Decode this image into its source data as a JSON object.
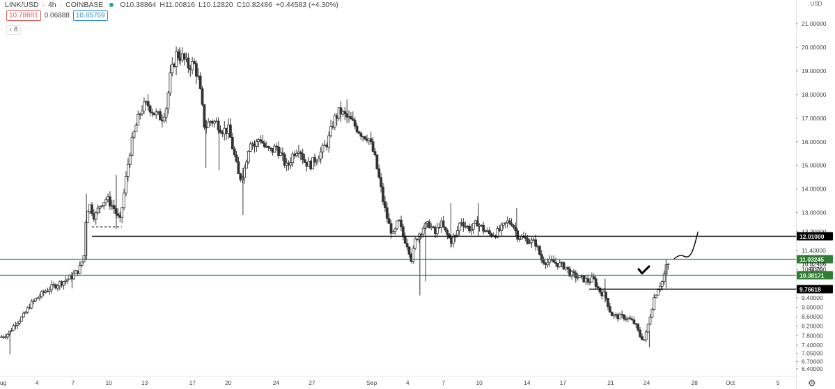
{
  "header": {
    "symbol": "LINK/USD",
    "interval": "4h",
    "exchange": "COINBASE",
    "sep": "·",
    "ohlc": {
      "open": "O10.38864",
      "high": "H11.00816",
      "low": "L10.12820",
      "close": "C10.82486",
      "change": "+0.44583 (+4.30%)"
    }
  },
  "quote": {
    "bid": "10.78881",
    "spread": "0.06888",
    "ask": "10.85769"
  },
  "indicator_toggle": {
    "chevron": "‹",
    "count": "8"
  },
  "settings_icon": "gear-icon",
  "colors": {
    "candle": "#333333",
    "support_line": "#000000",
    "green_line": "#2e7d32",
    "green_label_bg": "#2e7d32",
    "black_label_bg": "#000000",
    "grid": "#ffffff"
  },
  "chart_data": {
    "type": "candlestick",
    "currency_label": "USD",
    "price_axis_ticks": [
      6.4,
      6.7,
      7.05,
      7.4,
      7.8,
      8.2,
      8.6,
      9.0,
      9.4,
      9.8,
      10.6,
      11.4,
      12.2,
      13.0,
      14.0,
      15.0,
      16.0,
      17.0,
      18.0,
      19.0,
      20.0,
      21.0
    ],
    "price_axis_tick_labels": [
      "6.40000",
      "6.70000",
      "7.05000",
      "7.40000",
      "7.80000",
      "8.20000",
      "8.60000",
      "9.00000",
      "9.40000",
      "9.80000",
      "10.60000",
      "11.40000",
      "12.20000",
      "13.00000",
      "14.00000",
      "15.00000",
      "16.00000",
      "17.00000",
      "18.00000",
      "19.00000",
      "20.00000",
      "21.00000"
    ],
    "ylim": [
      6.1,
      22.0
    ],
    "date_axis_labels": [
      {
        "label": "Aug",
        "day": 1
      },
      {
        "label": "4",
        "day": 4
      },
      {
        "label": "7",
        "day": 7
      },
      {
        "label": "10",
        "day": 10
      },
      {
        "label": "13",
        "day": 13
      },
      {
        "label": "17",
        "day": 17
      },
      {
        "label": "20",
        "day": 20
      },
      {
        "label": "24",
        "day": 24
      },
      {
        "label": "27",
        "day": 27
      },
      {
        "label": "Sep",
        "day": 32
      },
      {
        "label": "4",
        "day": 35
      },
      {
        "label": "7",
        "day": 38
      },
      {
        "label": "10",
        "day": 41
      },
      {
        "label": "14",
        "day": 45
      },
      {
        "label": "17",
        "day": 48
      },
      {
        "label": "21",
        "day": 52
      },
      {
        "label": "24",
        "day": 55
      },
      {
        "label": "28",
        "day": 59
      },
      {
        "label": "Oct",
        "day": 62
      },
      {
        "label": "5",
        "day": 66
      }
    ],
    "xlim_days": [
      0.9,
      67.5
    ],
    "path_points": [
      [
        1.0,
        7.75
      ],
      [
        1.6,
        7.9
      ],
      [
        2.2,
        8.35
      ],
      [
        2.8,
        8.6
      ],
      [
        3.4,
        9.1
      ],
      [
        4.0,
        9.4
      ],
      [
        4.7,
        9.7
      ],
      [
        5.4,
        9.9
      ],
      [
        6.2,
        10.1
      ],
      [
        6.9,
        10.3
      ],
      [
        7.5,
        10.6
      ],
      [
        7.9,
        11.2
      ],
      [
        8.1,
        13.1
      ],
      [
        8.4,
        13.3
      ],
      [
        8.8,
        12.8
      ],
      [
        9.3,
        13.4
      ],
      [
        9.8,
        13.6
      ],
      [
        10.4,
        13.2
      ],
      [
        10.9,
        12.6
      ],
      [
        11.3,
        14.0
      ],
      [
        11.7,
        15.5
      ],
      [
        12.2,
        16.6
      ],
      [
        12.7,
        17.4
      ],
      [
        13.2,
        17.6
      ],
      [
        13.8,
        17.2
      ],
      [
        14.4,
        17.0
      ],
      [
        14.8,
        17.5
      ],
      [
        15.1,
        18.7
      ],
      [
        15.6,
        19.7
      ],
      [
        16.1,
        19.6
      ],
      [
        16.6,
        19.2
      ],
      [
        17.1,
        19.3
      ],
      [
        17.5,
        18.6
      ],
      [
        18.0,
        16.6
      ],
      [
        18.5,
        16.9
      ],
      [
        19.0,
        16.8
      ],
      [
        19.5,
        16.5
      ],
      [
        20.0,
        16.5
      ],
      [
        20.4,
        15.6
      ],
      [
        20.9,
        14.4
      ],
      [
        21.3,
        14.8
      ],
      [
        21.8,
        16.1
      ],
      [
        22.2,
        15.8
      ],
      [
        22.6,
        16.2
      ],
      [
        23.1,
        15.7
      ],
      [
        23.6,
        15.6
      ],
      [
        24.0,
        15.8
      ],
      [
        24.5,
        15.3
      ],
      [
        24.9,
        14.9
      ],
      [
        25.4,
        15.5
      ],
      [
        25.9,
        15.8
      ],
      [
        26.3,
        15.2
      ],
      [
        26.8,
        15.0
      ],
      [
        27.3,
        15.3
      ],
      [
        27.8,
        15.6
      ],
      [
        28.3,
        16.0
      ],
      [
        28.8,
        16.9
      ],
      [
        29.3,
        17.3
      ],
      [
        29.7,
        17.1
      ],
      [
        30.2,
        16.9
      ],
      [
        30.7,
        16.6
      ],
      [
        31.2,
        16.3
      ],
      [
        31.7,
        16.2
      ],
      [
        32.2,
        15.4
      ],
      [
        32.6,
        14.4
      ],
      [
        33.0,
        13.3
      ],
      [
        33.4,
        12.5
      ],
      [
        33.8,
        12.0
      ],
      [
        34.2,
        12.7
      ],
      [
        34.6,
        12.0
      ],
      [
        35.0,
        11.6
      ],
      [
        35.3,
        11.0
      ],
      [
        35.6,
        11.8
      ],
      [
        35.9,
        12.1
      ],
      [
        36.3,
        12.4
      ],
      [
        36.8,
        12.5
      ],
      [
        37.3,
        12.1
      ],
      [
        37.7,
        12.6
      ],
      [
        38.1,
        12.2
      ],
      [
        38.6,
        11.8
      ],
      [
        39.0,
        12.0
      ],
      [
        39.4,
        12.7
      ],
      [
        39.9,
        12.4
      ],
      [
        40.3,
        12.3
      ],
      [
        40.8,
        12.6
      ],
      [
        41.3,
        12.3
      ],
      [
        41.8,
        12.1
      ],
      [
        42.3,
        12.1
      ],
      [
        42.8,
        12.3
      ],
      [
        43.3,
        12.6
      ],
      [
        43.7,
        12.6
      ],
      [
        44.2,
        12.0
      ],
      [
        44.7,
        11.9
      ],
      [
        45.2,
        11.8
      ],
      [
        45.7,
        11.7
      ],
      [
        46.2,
        11.0
      ],
      [
        46.7,
        10.9
      ],
      [
        47.2,
        10.9
      ],
      [
        47.7,
        10.8
      ],
      [
        48.2,
        10.7
      ],
      [
        48.6,
        10.4
      ],
      [
        49.1,
        10.3
      ],
      [
        49.6,
        10.2
      ],
      [
        50.1,
        10.1
      ],
      [
        50.5,
        10.2
      ],
      [
        51.0,
        9.7
      ],
      [
        51.5,
        9.5
      ],
      [
        52.0,
        8.7
      ],
      [
        52.5,
        8.6
      ],
      [
        53.0,
        8.6
      ],
      [
        53.5,
        8.5
      ],
      [
        54.0,
        8.3
      ],
      [
        54.4,
        7.8
      ],
      [
        54.8,
        7.6
      ],
      [
        55.2,
        8.5
      ],
      [
        55.6,
        9.4
      ],
      [
        56.0,
        9.9
      ],
      [
        56.3,
        10.1
      ],
      [
        56.6,
        10.7
      ],
      [
        56.85,
        10.82
      ]
    ],
    "wicks": [
      {
        "day": 1.7,
        "low": 7.0,
        "high": 8.0
      },
      {
        "day": 6.9,
        "low": 9.8,
        "high": 10.5
      },
      {
        "day": 8.1,
        "low": 11.0,
        "high": 13.8
      },
      {
        "day": 10.6,
        "low": 12.3,
        "high": 14.6
      },
      {
        "day": 15.9,
        "low": 19.3,
        "high": 20.0
      },
      {
        "day": 18.1,
        "low": 14.9,
        "high": 16.9
      },
      {
        "day": 19.2,
        "low": 14.8,
        "high": 16.6
      },
      {
        "day": 21.2,
        "low": 12.9,
        "high": 14.9
      },
      {
        "day": 29.9,
        "low": 17.0,
        "high": 17.8
      },
      {
        "day": 36.0,
        "low": 9.5,
        "high": 12.0
      },
      {
        "day": 36.5,
        "low": 10.1,
        "high": 12.6
      },
      {
        "day": 38.6,
        "low": 11.5,
        "high": 13.4
      },
      {
        "day": 40.9,
        "low": 12.0,
        "high": 13.4
      },
      {
        "day": 44.1,
        "low": 12.1,
        "high": 13.2
      },
      {
        "day": 51.5,
        "low": 9.2,
        "high": 10.2
      },
      {
        "day": 55.2,
        "low": 7.3,
        "high": 8.0
      },
      {
        "day": 56.6,
        "low": 9.8,
        "high": 11.0
      }
    ],
    "horizontal_levels": [
      {
        "name": "resistance-12",
        "price": 12.01,
        "label": "12.01000",
        "style": "black-line",
        "from_day": 8.6,
        "label_style": "black"
      },
      {
        "name": "green-upper",
        "price": 11.03245,
        "label": "11.03245",
        "style": "green-line",
        "from_day": 0.9,
        "label_style": "green"
      },
      {
        "name": "green-lower",
        "price": 10.38171,
        "label": "10.38171",
        "style": "green-line",
        "from_day": 0.9,
        "label_style": "green"
      },
      {
        "name": "support-976",
        "price": 9.76618,
        "label": "9.76618",
        "style": "black-line",
        "from_day": 50.2,
        "label_style": "black"
      }
    ],
    "dashed_segment": {
      "from_day": 8.6,
      "to_day": 11.1,
      "price": 12.4
    },
    "projection_curve": [
      [
        57.3,
        11.05
      ],
      [
        57.8,
        11.25
      ],
      [
        58.3,
        11.1
      ],
      [
        58.7,
        11.2
      ],
      [
        59.0,
        11.6
      ],
      [
        59.3,
        12.2
      ]
    ],
    "checkmark": {
      "day": 54.8,
      "price": 10.55
    },
    "current_price": {
      "label": "10.82486",
      "price": 10.82486
    },
    "countdown": {
      "label": "43:25",
      "price": 10.62
    }
  }
}
